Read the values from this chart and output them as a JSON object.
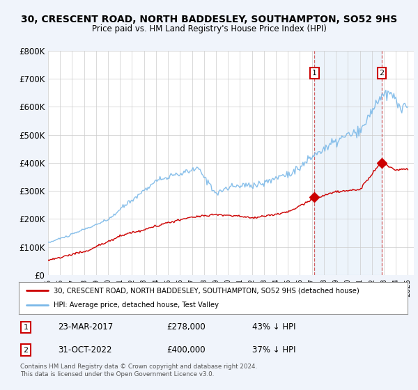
{
  "title_line1": "30, CRESCENT ROAD, NORTH BADDESLEY, SOUTHAMPTON, SO52 9HS",
  "title_line2": "Price paid vs. HM Land Registry's House Price Index (HPI)",
  "ylim": [
    0,
    800000
  ],
  "yticks": [
    0,
    100000,
    200000,
    300000,
    400000,
    500000,
    600000,
    700000,
    800000
  ],
  "ytick_labels": [
    "£0",
    "£100K",
    "£200K",
    "£300K",
    "£400K",
    "£500K",
    "£600K",
    "£700K",
    "£800K"
  ],
  "xlim_start": 1995.0,
  "xlim_end": 2025.5,
  "hpi_color": "#7ab8e8",
  "hpi_fill_color": "#ddeeff",
  "price_color": "#cc0000",
  "legend_label_red": "30, CRESCENT ROAD, NORTH BADDESLEY, SOUTHAMPTON, SO52 9HS (detached house)",
  "legend_label_blue": "HPI: Average price, detached house, Test Valley",
  "sale1_x": 2017.22,
  "sale1_y": 278000,
  "sale2_x": 2022.83,
  "sale2_y": 400000,
  "annotation1_date": "23-MAR-2017",
  "annotation1_price": "£278,000",
  "annotation1_pct": "43% ↓ HPI",
  "annotation2_date": "31-OCT-2022",
  "annotation2_price": "£400,000",
  "annotation2_pct": "37% ↓ HPI",
  "footer1": "Contains HM Land Registry data © Crown copyright and database right 2024.",
  "footer2": "This data is licensed under the Open Government Licence v3.0.",
  "vline1_x": 2017.22,
  "vline2_x": 2022.83,
  "background_color": "#f0f4fb",
  "plot_bg_color": "#ffffff"
}
